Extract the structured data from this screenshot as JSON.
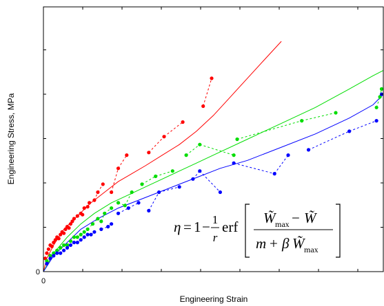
{
  "chart_data": {
    "type": "scatter",
    "title": "",
    "xlabel": "Engineering Strain",
    "ylabel": "Engineering Stress, MPa",
    "xlim": [
      0,
      1
    ],
    "ylim": [
      0,
      1
    ],
    "x_tick_labels": [
      "0"
    ],
    "y_tick_labels": [
      "0"
    ],
    "grid": false,
    "legend": "none",
    "annotation": {
      "eta": "η",
      "one": "1",
      "minus": "−",
      "r": "r",
      "erf": "erf",
      "w_max": "W̃",
      "max_sub": "max",
      "w": "W̃",
      "m": "m",
      "plus": "+",
      "beta": "β"
    },
    "series": [
      {
        "color": "#ff0000",
        "kind": "model-line",
        "x": [
          0.0,
          0.01,
          0.03,
          0.06,
          0.1,
          0.14,
          0.18,
          0.22,
          0.26,
          0.3,
          0.35,
          0.4,
          0.45,
          0.5,
          0.55,
          0.6,
          0.65,
          0.7
        ],
        "y": [
          0.0,
          0.05,
          0.1,
          0.16,
          0.21,
          0.26,
          0.3,
          0.34,
          0.37,
          0.4,
          0.44,
          0.48,
          0.53,
          0.59,
          0.66,
          0.73,
          0.8,
          0.87
        ]
      },
      {
        "color": "#00dd00",
        "kind": "model-line",
        "x": [
          0.0,
          0.03,
          0.07,
          0.11,
          0.15,
          0.2,
          0.25,
          0.3,
          0.35,
          0.4,
          0.45,
          0.5,
          0.6,
          0.7,
          0.8,
          0.9,
          0.97,
          1.0
        ],
        "y": [
          0.0,
          0.07,
          0.13,
          0.18,
          0.22,
          0.26,
          0.29,
          0.32,
          0.35,
          0.38,
          0.41,
          0.44,
          0.5,
          0.56,
          0.62,
          0.69,
          0.74,
          0.76
        ]
      },
      {
        "color": "#0000ff",
        "kind": "model-line",
        "x": [
          0.0,
          0.03,
          0.07,
          0.11,
          0.16,
          0.22,
          0.28,
          0.34,
          0.4,
          0.46,
          0.52,
          0.6,
          0.7,
          0.8,
          0.9,
          0.97,
          1.0
        ],
        "y": [
          0.0,
          0.06,
          0.11,
          0.16,
          0.2,
          0.24,
          0.27,
          0.3,
          0.33,
          0.36,
          0.39,
          0.42,
          0.47,
          0.52,
          0.58,
          0.63,
          0.67
        ]
      },
      {
        "color": "#ff0000",
        "kind": "test-data",
        "points": [
          [
            0.005,
            0.05
          ],
          [
            0.01,
            0.07
          ],
          [
            0.015,
            0.085
          ],
          [
            0.02,
            0.1
          ],
          [
            0.025,
            0.095
          ],
          [
            0.03,
            0.11
          ],
          [
            0.035,
            0.12
          ],
          [
            0.04,
            0.13
          ],
          [
            0.045,
            0.125
          ],
          [
            0.05,
            0.14
          ],
          [
            0.055,
            0.15
          ],
          [
            0.06,
            0.145
          ],
          [
            0.065,
            0.16
          ],
          [
            0.07,
            0.17
          ],
          [
            0.075,
            0.165
          ],
          [
            0.08,
            0.18
          ],
          [
            0.085,
            0.19
          ],
          [
            0.09,
            0.2
          ],
          [
            0.1,
            0.21
          ],
          [
            0.11,
            0.22
          ],
          [
            0.115,
            0.215
          ],
          [
            0.12,
            0.24
          ],
          [
            0.13,
            0.245
          ],
          [
            0.135,
            0.26
          ],
          [
            0.15,
            0.27
          ],
          [
            0.16,
            0.3
          ],
          [
            0.175,
            0.33
          ],
          [
            0.2,
            0.3
          ],
          [
            0.22,
            0.39
          ],
          [
            0.245,
            0.44
          ],
          [
            0.31,
            0.45
          ],
          [
            0.355,
            0.51
          ],
          [
            0.41,
            0.565
          ],
          [
            0.47,
            0.625
          ],
          [
            0.495,
            0.73
          ]
        ]
      },
      {
        "color": "#00dd00",
        "kind": "test-data",
        "points": [
          [
            0.01,
            0.04
          ],
          [
            0.02,
            0.06
          ],
          [
            0.03,
            0.07
          ],
          [
            0.04,
            0.08
          ],
          [
            0.05,
            0.09
          ],
          [
            0.06,
            0.1
          ],
          [
            0.07,
            0.1
          ],
          [
            0.08,
            0.115
          ],
          [
            0.09,
            0.13
          ],
          [
            0.1,
            0.13
          ],
          [
            0.11,
            0.14
          ],
          [
            0.12,
            0.15
          ],
          [
            0.13,
            0.16
          ],
          [
            0.145,
            0.18
          ],
          [
            0.16,
            0.2
          ],
          [
            0.17,
            0.19
          ],
          [
            0.18,
            0.22
          ],
          [
            0.2,
            0.24
          ],
          [
            0.22,
            0.26
          ],
          [
            0.24,
            0.25
          ],
          [
            0.26,
            0.3
          ],
          [
            0.29,
            0.33
          ],
          [
            0.33,
            0.36
          ],
          [
            0.38,
            0.38
          ],
          [
            0.42,
            0.44
          ],
          [
            0.46,
            0.48
          ],
          [
            0.56,
            0.44
          ],
          [
            0.57,
            0.5
          ],
          [
            0.76,
            0.57
          ],
          [
            0.86,
            0.6
          ],
          [
            0.98,
            0.62
          ],
          [
            0.99,
            0.66
          ],
          [
            0.995,
            0.69
          ]
        ]
      },
      {
        "color": "#0000ff",
        "kind": "test-data",
        "points": [
          [
            0.01,
            0.03
          ],
          [
            0.02,
            0.05
          ],
          [
            0.03,
            0.06
          ],
          [
            0.04,
            0.07
          ],
          [
            0.05,
            0.07
          ],
          [
            0.06,
            0.08
          ],
          [
            0.07,
            0.09
          ],
          [
            0.08,
            0.1
          ],
          [
            0.09,
            0.11
          ],
          [
            0.1,
            0.11
          ],
          [
            0.11,
            0.12
          ],
          [
            0.12,
            0.13
          ],
          [
            0.13,
            0.14
          ],
          [
            0.14,
            0.14
          ],
          [
            0.15,
            0.15
          ],
          [
            0.17,
            0.16
          ],
          [
            0.19,
            0.17
          ],
          [
            0.2,
            0.18
          ],
          [
            0.22,
            0.22
          ],
          [
            0.25,
            0.24
          ],
          [
            0.28,
            0.26
          ],
          [
            0.31,
            0.23
          ],
          [
            0.34,
            0.3
          ],
          [
            0.4,
            0.32
          ],
          [
            0.44,
            0.35
          ],
          [
            0.46,
            0.38
          ],
          [
            0.52,
            0.3
          ],
          [
            0.56,
            0.41
          ],
          [
            0.68,
            0.37
          ],
          [
            0.72,
            0.44
          ],
          [
            0.78,
            0.46
          ],
          [
            0.9,
            0.53
          ],
          [
            0.98,
            0.57
          ],
          [
            0.995,
            0.67
          ]
        ]
      }
    ]
  },
  "colors": {
    "red": "#ff0000",
    "green": "#00dd00",
    "blue": "#0000ff",
    "axis": "#000000"
  }
}
